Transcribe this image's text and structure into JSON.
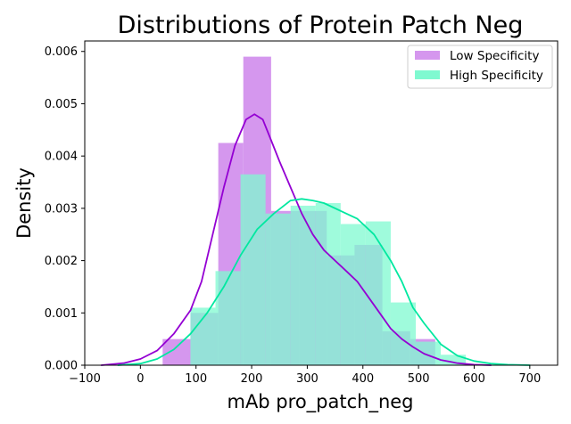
{
  "chart_data": {
    "type": "histogram+kde",
    "title": "Distributions of Protein Patch Neg",
    "xlabel": "mAb pro_patch_neg",
    "ylabel": "Density",
    "xlim": [
      -100,
      750
    ],
    "ylim": [
      0,
      0.0062
    ],
    "x_ticks": [
      -100,
      0,
      100,
      200,
      300,
      400,
      500,
      600,
      700
    ],
    "x_tick_labels": [
      "−100",
      "0",
      "100",
      "200",
      "300",
      "400",
      "500",
      "600",
      "700"
    ],
    "y_ticks": [
      0,
      0.001,
      0.002,
      0.003,
      0.004,
      0.005,
      0.006
    ],
    "y_tick_labels": [
      "0.000",
      "0.001",
      "0.002",
      "0.003",
      "0.004",
      "0.005",
      "0.006"
    ],
    "grid": false,
    "legend_position": "top-right",
    "series": [
      {
        "name": "Low Specificity",
        "color": "#9400d3",
        "fill_color": "#d597ee",
        "bins": [
          {
            "x0": 40,
            "x1": 90,
            "density": 0.0005
          },
          {
            "x0": 90,
            "x1": 140,
            "density": 0.001
          },
          {
            "x0": 140,
            "x1": 185,
            "density": 0.00425
          },
          {
            "x0": 185,
            "x1": 235,
            "density": 0.0059
          },
          {
            "x0": 235,
            "x1": 285,
            "density": 0.00295
          },
          {
            "x0": 285,
            "x1": 335,
            "density": 0.00295
          },
          {
            "x0": 335,
            "x1": 385,
            "density": 0.0021
          },
          {
            "x0": 385,
            "x1": 435,
            "density": 0.0023
          },
          {
            "x0": 435,
            "x1": 485,
            "density": 0.00065
          },
          {
            "x0": 485,
            "x1": 530,
            "density": 0.0005
          }
        ],
        "kde": {
          "x": [
            -70,
            -30,
            0,
            30,
            60,
            90,
            110,
            130,
            150,
            170,
            190,
            205,
            220,
            235,
            250,
            270,
            290,
            310,
            330,
            350,
            370,
            390,
            410,
            430,
            450,
            470,
            490,
            510,
            540,
            570,
            600,
            630
          ],
          "y": [
            0.0,
            4e-05,
            0.00012,
            0.00028,
            0.0006,
            0.00105,
            0.0016,
            0.0025,
            0.0034,
            0.0042,
            0.0047,
            0.0048,
            0.0047,
            0.0043,
            0.0039,
            0.0034,
            0.0029,
            0.0025,
            0.0022,
            0.002,
            0.0018,
            0.0016,
            0.0013,
            0.001,
            0.0007,
            0.0005,
            0.00035,
            0.00022,
            0.0001,
            4e-05,
            1e-05,
            0.0
          ]
        }
      },
      {
        "name": "High Specificity",
        "color": "#00e8a0",
        "fill_color": "#7ff9d0",
        "bins": [
          {
            "x0": 90,
            "x1": 135,
            "density": 0.0011
          },
          {
            "x0": 135,
            "x1": 180,
            "density": 0.0018
          },
          {
            "x0": 180,
            "x1": 225,
            "density": 0.00365
          },
          {
            "x0": 225,
            "x1": 270,
            "density": 0.0029
          },
          {
            "x0": 270,
            "x1": 315,
            "density": 0.00305
          },
          {
            "x0": 315,
            "x1": 360,
            "density": 0.0031
          },
          {
            "x0": 360,
            "x1": 405,
            "density": 0.0027
          },
          {
            "x0": 405,
            "x1": 450,
            "density": 0.00275
          },
          {
            "x0": 450,
            "x1": 495,
            "density": 0.0012
          },
          {
            "x0": 495,
            "x1": 540,
            "density": 0.00045
          },
          {
            "x0": 540,
            "x1": 585,
            "density": 0.0002
          }
        ],
        "kde": {
          "x": [
            -40,
            0,
            30,
            60,
            90,
            120,
            150,
            180,
            210,
            240,
            270,
            290,
            310,
            330,
            360,
            390,
            420,
            450,
            470,
            490,
            510,
            540,
            570,
            600,
            630,
            660,
            700
          ],
          "y": [
            0.0,
            3e-05,
            0.00012,
            0.0003,
            0.0006,
            0.001,
            0.0015,
            0.0021,
            0.0026,
            0.0029,
            0.00315,
            0.00318,
            0.00315,
            0.0031,
            0.00295,
            0.0028,
            0.0025,
            0.002,
            0.0016,
            0.0011,
            0.0008,
            0.0004,
            0.00018,
            8e-05,
            3e-05,
            1e-05,
            0.0
          ]
        }
      }
    ]
  }
}
